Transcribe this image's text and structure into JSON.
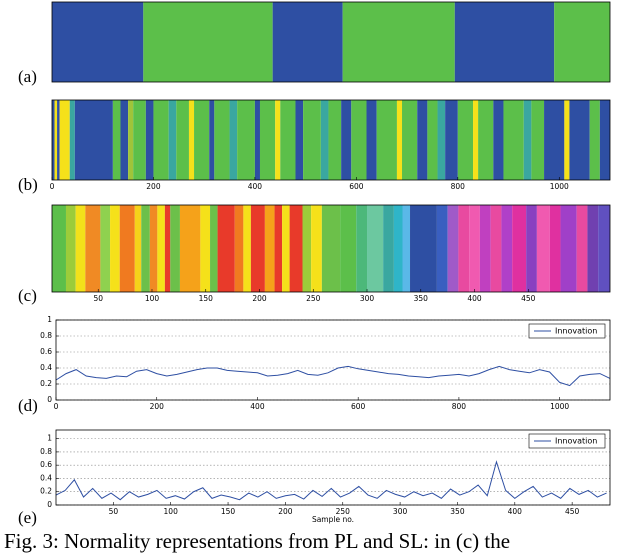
{
  "caption": "Fig. 3: Normality representations from PL and SL: in (c) the",
  "chart_data": [
    {
      "type": "band",
      "label": "(a)",
      "xlim": [
        0,
        1100
      ],
      "segments": [
        [
          0,
          180,
          "#2e4fa3"
        ],
        [
          180,
          435,
          "#5cbf4a"
        ],
        [
          435,
          573,
          "#2e4fa3"
        ],
        [
          573,
          794,
          "#5cbf4a"
        ],
        [
          794,
          990,
          "#2e4fa3"
        ],
        [
          990,
          1100,
          "#5cbf4a"
        ]
      ]
    },
    {
      "type": "band",
      "label": "(b)",
      "xlim": [
        0,
        1100
      ],
      "xticks": [
        0,
        200,
        400,
        600,
        800,
        1000
      ],
      "segments": [
        [
          0,
          5,
          "#2e4fa3"
        ],
        [
          5,
          10,
          "#f5e11a"
        ],
        [
          10,
          15,
          "#2e4fa3"
        ],
        [
          15,
          35,
          "#f5e11a"
        ],
        [
          35,
          45,
          "#3aa7a0"
        ],
        [
          45,
          120,
          "#2e4fa3"
        ],
        [
          120,
          135,
          "#5cbf4a"
        ],
        [
          135,
          150,
          "#2e4fa3"
        ],
        [
          150,
          160,
          "#9fc43a"
        ],
        [
          160,
          185,
          "#5cbf4a"
        ],
        [
          185,
          200,
          "#2e4fa3"
        ],
        [
          200,
          230,
          "#5cbf4a"
        ],
        [
          230,
          245,
          "#3aa7a0"
        ],
        [
          245,
          270,
          "#5cbf4a"
        ],
        [
          270,
          280,
          "#f5e11a"
        ],
        [
          280,
          310,
          "#5cbf4a"
        ],
        [
          310,
          320,
          "#2e4fa3"
        ],
        [
          320,
          350,
          "#5cbf4a"
        ],
        [
          350,
          365,
          "#3aa7a0"
        ],
        [
          365,
          400,
          "#5cbf4a"
        ],
        [
          400,
          410,
          "#2e4fa3"
        ],
        [
          410,
          440,
          "#5cbf4a"
        ],
        [
          440,
          450,
          "#f5e11a"
        ],
        [
          450,
          480,
          "#5cbf4a"
        ],
        [
          480,
          495,
          "#2e4fa3"
        ],
        [
          495,
          530,
          "#5cbf4a"
        ],
        [
          530,
          545,
          "#3aa7a0"
        ],
        [
          545,
          570,
          "#5cbf4a"
        ],
        [
          570,
          590,
          "#2e4fa3"
        ],
        [
          590,
          620,
          "#5cbf4a"
        ],
        [
          620,
          640,
          "#2e4fa3"
        ],
        [
          640,
          680,
          "#5cbf4a"
        ],
        [
          680,
          690,
          "#f5e11a"
        ],
        [
          690,
          720,
          "#5cbf4a"
        ],
        [
          720,
          740,
          "#2e4fa3"
        ],
        [
          740,
          760,
          "#5cbf4a"
        ],
        [
          760,
          775,
          "#3aa7a0"
        ],
        [
          775,
          800,
          "#2e4fa3"
        ],
        [
          800,
          830,
          "#5cbf4a"
        ],
        [
          830,
          840,
          "#f5e11a"
        ],
        [
          840,
          870,
          "#5cbf4a"
        ],
        [
          870,
          890,
          "#2e4fa3"
        ],
        [
          890,
          930,
          "#5cbf4a"
        ],
        [
          930,
          945,
          "#3aa7a0"
        ],
        [
          945,
          970,
          "#5cbf4a"
        ],
        [
          970,
          1010,
          "#2e4fa3"
        ],
        [
          1010,
          1020,
          "#f5e11a"
        ],
        [
          1020,
          1060,
          "#2e4fa3"
        ],
        [
          1060,
          1080,
          "#5cbf4a"
        ],
        [
          1080,
          1100,
          "#2e4fa3"
        ]
      ]
    },
    {
      "type": "band",
      "label": "(c)",
      "xlim": [
        7,
        526
      ],
      "xticks": [
        50,
        100,
        150,
        200,
        250,
        300,
        350,
        400,
        450
      ],
      "segments": [
        [
          7,
          20,
          "#5cbf4a"
        ],
        [
          20,
          29,
          "#9ccc3a"
        ],
        [
          29,
          38,
          "#f3e11a"
        ],
        [
          38,
          52,
          "#f08a24"
        ],
        [
          52,
          61,
          "#8fd14f"
        ],
        [
          61,
          70,
          "#f5e11a"
        ],
        [
          70,
          84,
          "#f07a20"
        ],
        [
          84,
          90,
          "#f5d21a"
        ],
        [
          90,
          98,
          "#6cc04a"
        ],
        [
          98,
          105,
          "#f08a24"
        ],
        [
          105,
          112,
          "#f5e11a"
        ],
        [
          112,
          117,
          "#e83a2a"
        ],
        [
          117,
          126,
          "#6cc04a"
        ],
        [
          126,
          145,
          "#f5a21a"
        ],
        [
          145,
          154,
          "#f5e11a"
        ],
        [
          154,
          161,
          "#6cc04a"
        ],
        [
          161,
          177,
          "#e83a2a"
        ],
        [
          177,
          185,
          "#f07a20"
        ],
        [
          185,
          192,
          "#f5e11a"
        ],
        [
          192,
          205,
          "#e83a2a"
        ],
        [
          205,
          214,
          "#f5a21a"
        ],
        [
          214,
          221,
          "#e83a2a"
        ],
        [
          221,
          228,
          "#f5e11a"
        ],
        [
          228,
          240,
          "#e83a2a"
        ],
        [
          240,
          248,
          "#9ccc3a"
        ],
        [
          248,
          258,
          "#f5e11a"
        ],
        [
          258,
          275,
          "#6cc04a"
        ],
        [
          275,
          290,
          "#5cbf4a"
        ],
        [
          290,
          300,
          "#4cb87a"
        ],
        [
          300,
          315,
          "#6cc8a0"
        ],
        [
          315,
          325,
          "#3aa7a0"
        ],
        [
          325,
          333,
          "#2fb5c8"
        ],
        [
          333,
          340,
          "#5ab8e8"
        ],
        [
          340,
          365,
          "#2e4fa3"
        ],
        [
          365,
          375,
          "#3a5fc0"
        ],
        [
          375,
          385,
          "#a05ac8"
        ],
        [
          385,
          395,
          "#e84aa0"
        ],
        [
          395,
          405,
          "#f05ab0"
        ],
        [
          405,
          415,
          "#c040c0"
        ],
        [
          415,
          425,
          "#e84aa0"
        ],
        [
          425,
          435,
          "#b040c8"
        ],
        [
          435,
          448,
          "#e030a0"
        ],
        [
          448,
          458,
          "#8a40c0"
        ],
        [
          458,
          470,
          "#f05ab0"
        ],
        [
          470,
          480,
          "#e030a0"
        ],
        [
          480,
          495,
          "#a040c8"
        ],
        [
          495,
          505,
          "#e84aa0"
        ],
        [
          505,
          515,
          "#7040b0"
        ],
        [
          515,
          526,
          "#6050c0"
        ]
      ]
    },
    {
      "type": "line",
      "label": "(d)",
      "xlim": [
        0,
        1100
      ],
      "xticks": [
        0,
        200,
        400,
        600,
        800,
        1000
      ],
      "ylim": [
        0,
        1
      ],
      "yticks": [
        0,
        0.2,
        0.4,
        0.6,
        0.8,
        1
      ],
      "grid": true,
      "legend": "upper right",
      "x": [
        0,
        20,
        40,
        60,
        80,
        100,
        120,
        140,
        160,
        180,
        200,
        220,
        240,
        260,
        280,
        300,
        320,
        340,
        360,
        380,
        400,
        420,
        440,
        460,
        480,
        500,
        520,
        540,
        560,
        580,
        600,
        620,
        640,
        660,
        680,
        700,
        720,
        740,
        760,
        780,
        800,
        820,
        840,
        860,
        880,
        900,
        920,
        940,
        960,
        980,
        1000,
        1020,
        1040,
        1060,
        1080,
        1100
      ],
      "series": [
        {
          "name": "Innovation",
          "color": "#2e4fa3",
          "values": [
            0.25,
            0.33,
            0.38,
            0.3,
            0.28,
            0.27,
            0.3,
            0.29,
            0.36,
            0.38,
            0.33,
            0.3,
            0.32,
            0.35,
            0.38,
            0.4,
            0.4,
            0.37,
            0.36,
            0.35,
            0.34,
            0.3,
            0.31,
            0.33,
            0.37,
            0.32,
            0.31,
            0.34,
            0.4,
            0.42,
            0.39,
            0.37,
            0.35,
            0.33,
            0.32,
            0.3,
            0.29,
            0.28,
            0.3,
            0.31,
            0.32,
            0.3,
            0.33,
            0.38,
            0.42,
            0.38,
            0.36,
            0.34,
            0.38,
            0.35,
            0.22,
            0.18,
            0.3,
            0.32,
            0.33,
            0.27
          ]
        }
      ]
    },
    {
      "type": "line",
      "label": "(e)",
      "xlabel": "Sample no.",
      "xlim": [
        0,
        483
      ],
      "xticks": [
        50,
        100,
        150,
        200,
        250,
        300,
        350,
        400,
        450
      ],
      "ylim": [
        0,
        1.13
      ],
      "yticks": [
        0,
        0.2,
        0.4,
        0.6,
        0.8,
        1
      ],
      "grid": true,
      "legend": "upper right",
      "x": [
        0,
        8,
        16,
        24,
        32,
        40,
        48,
        56,
        64,
        72,
        80,
        88,
        96,
        104,
        112,
        120,
        128,
        136,
        144,
        152,
        160,
        168,
        176,
        184,
        192,
        200,
        208,
        216,
        224,
        232,
        240,
        248,
        256,
        264,
        272,
        280,
        288,
        296,
        304,
        312,
        320,
        328,
        336,
        344,
        352,
        360,
        368,
        376,
        384,
        392,
        400,
        408,
        416,
        424,
        432,
        440,
        448,
        456,
        464,
        472,
        480
      ],
      "series": [
        {
          "name": "Innovation",
          "color": "#2e4fa3",
          "values": [
            0.15,
            0.22,
            0.38,
            0.12,
            0.25,
            0.1,
            0.18,
            0.08,
            0.2,
            0.12,
            0.16,
            0.22,
            0.1,
            0.14,
            0.09,
            0.2,
            0.26,
            0.1,
            0.15,
            0.12,
            0.08,
            0.18,
            0.12,
            0.2,
            0.1,
            0.14,
            0.16,
            0.09,
            0.22,
            0.13,
            0.25,
            0.12,
            0.18,
            0.28,
            0.15,
            0.1,
            0.22,
            0.16,
            0.12,
            0.2,
            0.14,
            0.18,
            0.1,
            0.24,
            0.15,
            0.2,
            0.3,
            0.14,
            0.65,
            0.22,
            0.1,
            0.2,
            0.28,
            0.12,
            0.18,
            0.1,
            0.25,
            0.16,
            0.22,
            0.12,
            0.18
          ]
        }
      ]
    }
  ]
}
